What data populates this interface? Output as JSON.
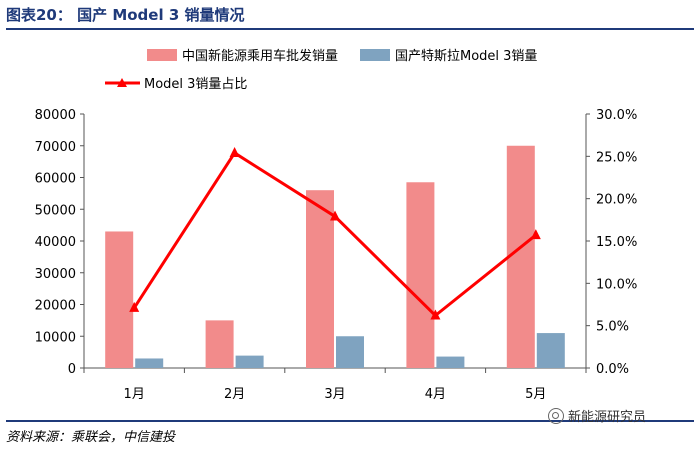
{
  "header": {
    "title": "图表20： 国产 Model 3 销量情况"
  },
  "footer": {
    "source": "资料来源：乘联会，中信建投"
  },
  "watermark": {
    "text": "新能源研究员",
    "icon": "wechat-icon"
  },
  "colors": {
    "bar1": "#f28b8b",
    "bar2": "#7fa3c0",
    "line": "#ff0000",
    "header": "#1f3a7a"
  },
  "chart_data": {
    "type": "bar",
    "categories": [
      "1月",
      "2月",
      "3月",
      "4月",
      "5月"
    ],
    "series": [
      {
        "name": "中国新能源乘用车批发销量",
        "type": "bar",
        "axis": "left",
        "values": [
          43000,
          15000,
          56000,
          58500,
          70000
        ]
      },
      {
        "name": "国产特斯拉Model 3销量",
        "type": "bar",
        "axis": "left",
        "values": [
          3000,
          3900,
          10000,
          3600,
          11000
        ]
      },
      {
        "name": "Model 3销量占比",
        "type": "line",
        "axis": "right",
        "values": [
          7.1,
          25.4,
          17.9,
          6.2,
          15.7
        ],
        "marker": "triangle"
      }
    ],
    "y_left": {
      "ylim": [
        0,
        80000
      ],
      "ticks": [
        0,
        10000,
        20000,
        30000,
        40000,
        50000,
        60000,
        70000,
        80000
      ],
      "tick_labels": [
        "0",
        "10000",
        "20000",
        "30000",
        "40000",
        "50000",
        "60000",
        "70000",
        "80000"
      ]
    },
    "y_right": {
      "ylim": [
        0,
        30
      ],
      "ticks": [
        0,
        5,
        10,
        15,
        20,
        25,
        30
      ],
      "tick_labels": [
        "0.0%",
        "5.0%",
        "10.0%",
        "15.0%",
        "20.0%",
        "25.0%",
        "30.0%"
      ]
    },
    "legend": {
      "position": "top-left",
      "entries": [
        "中国新能源乘用车批发销量",
        "国产特斯拉Model 3销量",
        "Model 3销量占比"
      ]
    },
    "grid": false
  }
}
